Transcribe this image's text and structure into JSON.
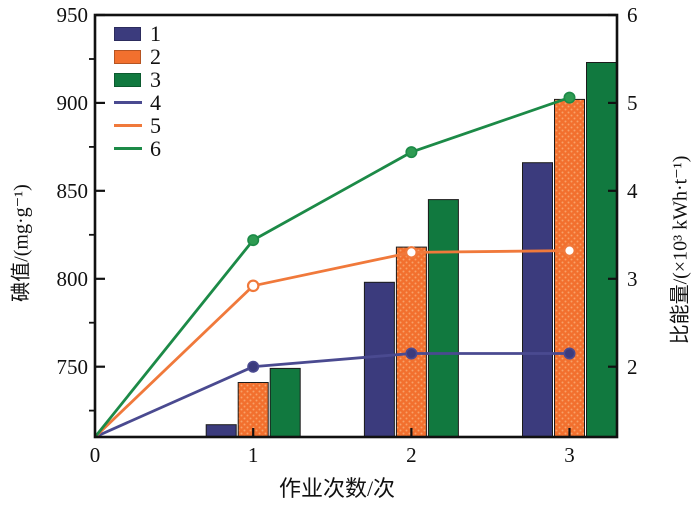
{
  "chart_data": {
    "type": "combo-bar-line",
    "title": "",
    "categories": [
      1,
      2,
      3
    ],
    "x_axis": {
      "label": "作业次数/次",
      "min": 0,
      "max": 3.3,
      "ticks": [
        0,
        1,
        2,
        3
      ]
    },
    "left_axis": {
      "label": "碘值/(mg·g⁻¹)",
      "min": 710,
      "max": 950,
      "ticks": [
        750,
        800,
        850,
        900,
        950
      ],
      "minor_ticks": [
        725,
        775,
        825,
        875,
        925
      ]
    },
    "right_axis": {
      "label": "比能量/(×10³ kWh·t⁻¹)",
      "min": 1.2,
      "max": 6,
      "ticks": [
        2,
        3,
        4,
        5,
        6
      ]
    },
    "grid": "off",
    "legend_position": "top-left-inside",
    "bar_series": [
      {
        "name": "1",
        "color": "#3B3B7D",
        "pattern": "solid",
        "values": [
          717,
          798,
          866
        ]
      },
      {
        "name": "2",
        "color": "#F2702E",
        "pattern": "dots",
        "dot_color": "#F8A168",
        "values": [
          741,
          818,
          902
        ]
      },
      {
        "name": "3",
        "color": "#11793F",
        "pattern": "solid",
        "values": [
          749,
          845,
          923
        ]
      }
    ],
    "line_series": [
      {
        "name": "4",
        "color": "#4A4A90",
        "marker": "filled-circle",
        "marker_fill": "#3B3B7D",
        "x": [
          0,
          1,
          2,
          3
        ],
        "values": [
          1.2,
          2.0,
          2.15,
          2.15
        ]
      },
      {
        "name": "5",
        "color": "#F0793B",
        "marker": "open-circle",
        "marker_fill": "#FFFFFF",
        "x": [
          0,
          1,
          2,
          3
        ],
        "values": [
          1.2,
          2.92,
          3.3,
          3.32
        ]
      },
      {
        "name": "6",
        "color": "#1C8A47",
        "marker": "filled-circle",
        "marker_fill": "#2E9B52",
        "x": [
          0,
          1,
          2,
          3
        ],
        "values": [
          1.2,
          3.44,
          4.44,
          5.06
        ]
      }
    ],
    "legend": [
      {
        "label": "1",
        "type": "bar",
        "color": "#3B3B7D"
      },
      {
        "label": "2",
        "type": "bar",
        "color": "#F2702E"
      },
      {
        "label": "3",
        "type": "bar",
        "color": "#11793F"
      },
      {
        "label": "4",
        "type": "line",
        "color": "#4A4A90"
      },
      {
        "label": "5",
        "type": "line",
        "color": "#F0793B"
      },
      {
        "label": "6",
        "type": "line",
        "color": "#1C8A47"
      }
    ],
    "frame_color": "#111111"
  }
}
